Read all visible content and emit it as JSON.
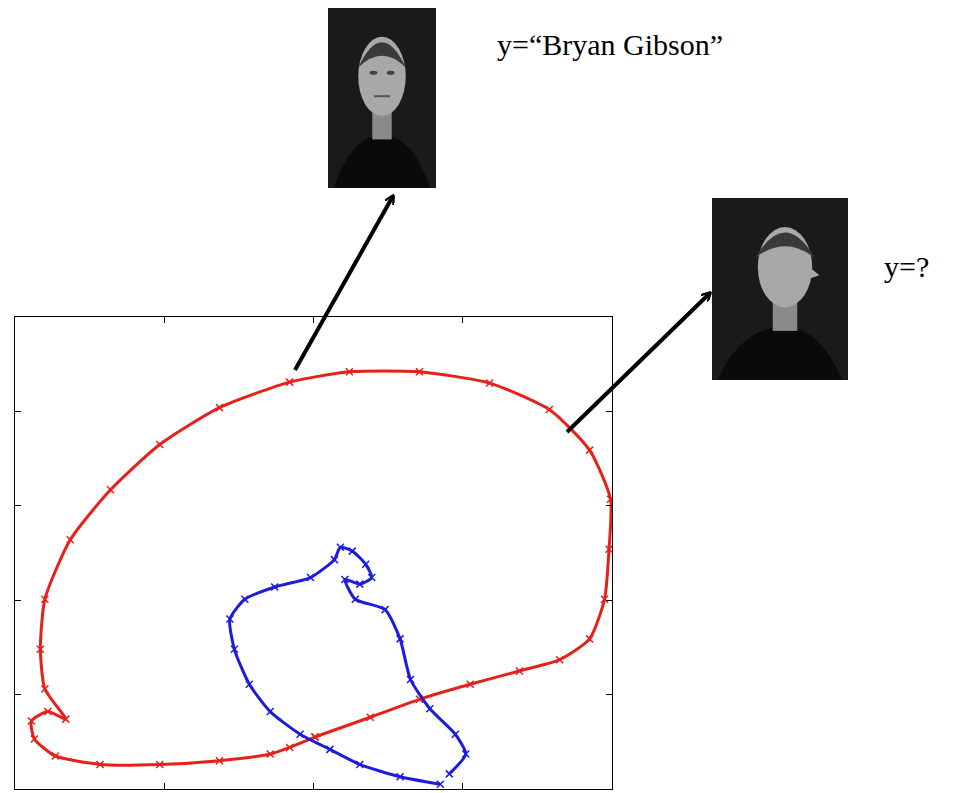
{
  "chart_data": {
    "type": "scatter",
    "annotations": [
      "y=“Bryan Gibson”",
      "y=?"
    ],
    "xlim": [
      0,
      4
    ],
    "ylim": [
      0,
      5
    ],
    "xticks": [
      1,
      2,
      3
    ],
    "yticks": [
      1,
      2,
      3,
      4
    ],
    "tick_labels": false,
    "grid": false,
    "series": [
      {
        "color": "#e8201a",
        "marker": "x",
        "line_style": "solid",
        "x": [
          2.01,
          1.71,
          1.37,
          0.97,
          0.57,
          0.27,
          0.13,
          0.11,
          0.22,
          0.34,
          0.2,
          0.17,
          0.2,
          0.37,
          0.64,
          0.97,
          1.37,
          1.84,
          2.24,
          2.71,
          3.18,
          3.58,
          3.85,
          3.99,
          3.98,
          3.95,
          3.85,
          3.65,
          3.38,
          3.05,
          2.71,
          2.38,
          2.01,
          1.84
        ],
        "values": [
          0.55,
          0.37,
          0.3,
          0.26,
          0.26,
          0.35,
          0.53,
          0.72,
          0.82,
          0.74,
          1.06,
          1.48,
          2.01,
          2.64,
          3.17,
          3.65,
          4.04,
          4.31,
          4.42,
          4.42,
          4.3,
          4.02,
          3.59,
          3.07,
          2.54,
          2.01,
          1.59,
          1.37,
          1.25,
          1.11,
          0.95,
          0.76,
          0.55,
          0.44
        ]
      },
      {
        "color": "#1c1ce0",
        "marker": "x",
        "line_style": "solid",
        "x": [
          2.85,
          2.58,
          2.31,
          2.11,
          1.91,
          1.71,
          1.57,
          1.47,
          1.44,
          1.54,
          1.74,
          1.98,
          2.14,
          2.18,
          2.26,
          2.35,
          2.39,
          2.31,
          2.21,
          2.28,
          2.48,
          2.58,
          2.65,
          2.78,
          2.95,
          3.02,
          2.91
        ],
        "values": [
          0.05,
          0.13,
          0.26,
          0.42,
          0.58,
          0.82,
          1.11,
          1.48,
          1.8,
          2.01,
          2.14,
          2.24,
          2.43,
          2.56,
          2.52,
          2.38,
          2.24,
          2.17,
          2.22,
          2.01,
          1.9,
          1.59,
          1.16,
          0.85,
          0.58,
          0.37,
          0.16
        ]
      }
    ]
  }
}
